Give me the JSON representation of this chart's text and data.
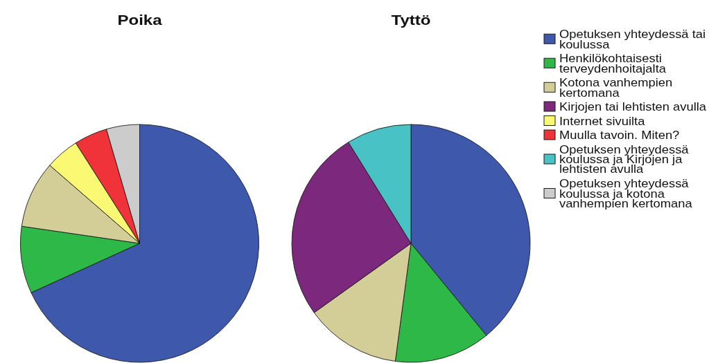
{
  "chart_data": [
    {
      "type": "pie",
      "title": "Poika",
      "categories": [
        null,
        null,
        null,
        null,
        null,
        null
      ],
      "values": [
        68.2,
        9.1,
        9.1,
        4.6,
        4.5,
        4.5
      ],
      "colors": [
        "#3e58ac",
        "#2eb848",
        "#d3ce97",
        "#fbf873",
        "#ef3338",
        "#cccccc"
      ],
      "legend": false
    },
    {
      "type": "pie",
      "title": "Tyttö",
      "categories": [
        "Opetuksen yhteydessä tai koulussa",
        "Henkilökohtaisesti terveydenhoitajalta",
        "Kotona vanhempien kertomana",
        "Kirjojen tai lehtisten avulla",
        "Internet sivuilta",
        "Muulla tavoin. Miten?",
        "Opetuksen yhteydessä koulussa ja Kirjojen ja lehtisten avulla",
        "Opetuksen yhteydessä koulussa ja kotona vanhempien kertomana"
      ],
      "values": [
        39.1,
        13,
        13,
        26.1,
        null,
        null,
        8.8,
        null
      ],
      "colors": [
        "#3e58ac",
        "#2eb848",
        "#d3ce97",
        "#7c287d",
        "#fbf873",
        "#ef3338",
        "#48c2c5",
        "#cccccc"
      ],
      "legend": "right"
    }
  ]
}
